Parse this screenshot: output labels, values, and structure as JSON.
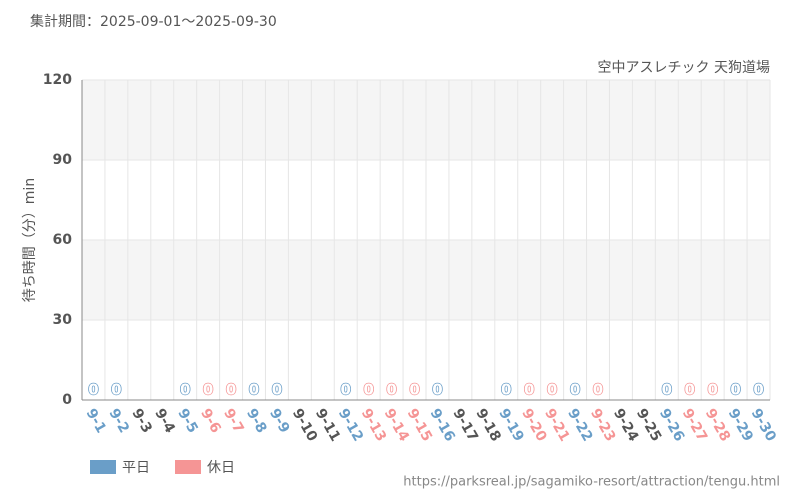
{
  "chart_data": {
    "type": "bar",
    "title": "集計期間：2025-09-01～2025-09-30",
    "subtitle": "空中アスレチック 天狗道場",
    "y_label": "待ち時間（分）min",
    "source": "https://parksreal.jp/sagamiko-resort/attraction/tengu.html",
    "categories": [
      "9-1",
      "9-2",
      "9-3",
      "9-4",
      "9-5",
      "9-6",
      "9-7",
      "9-8",
      "9-9",
      "9-10",
      "9-11",
      "9-12",
      "9-13",
      "9-14",
      "9-15",
      "9-16",
      "9-17",
      "9-18",
      "9-19",
      "9-20",
      "9-21",
      "9-22",
      "9-23",
      "9-24",
      "9-25",
      "9-26",
      "9-27",
      "9-28",
      "9-29",
      "9-30"
    ],
    "series": [
      {
        "name": "平日",
        "color": "#6a9ec8",
        "values": [
          0,
          0,
          null,
          null,
          0,
          null,
          null,
          0,
          0,
          null,
          null,
          0,
          null,
          null,
          null,
          0,
          null,
          null,
          0,
          null,
          null,
          0,
          null,
          null,
          null,
          0,
          null,
          null,
          0,
          0
        ]
      },
      {
        "name": "休日",
        "color": "#f59595",
        "values": [
          null,
          null,
          null,
          null,
          null,
          0,
          0,
          null,
          null,
          null,
          null,
          null,
          0,
          0,
          0,
          null,
          null,
          null,
          null,
          0,
          0,
          null,
          0,
          null,
          null,
          null,
          0,
          0,
          null,
          null
        ]
      }
    ],
    "ylim": [
      0,
      120
    ],
    "yticks": [
      0,
      30,
      60,
      90,
      120
    ],
    "grid": true
  }
}
